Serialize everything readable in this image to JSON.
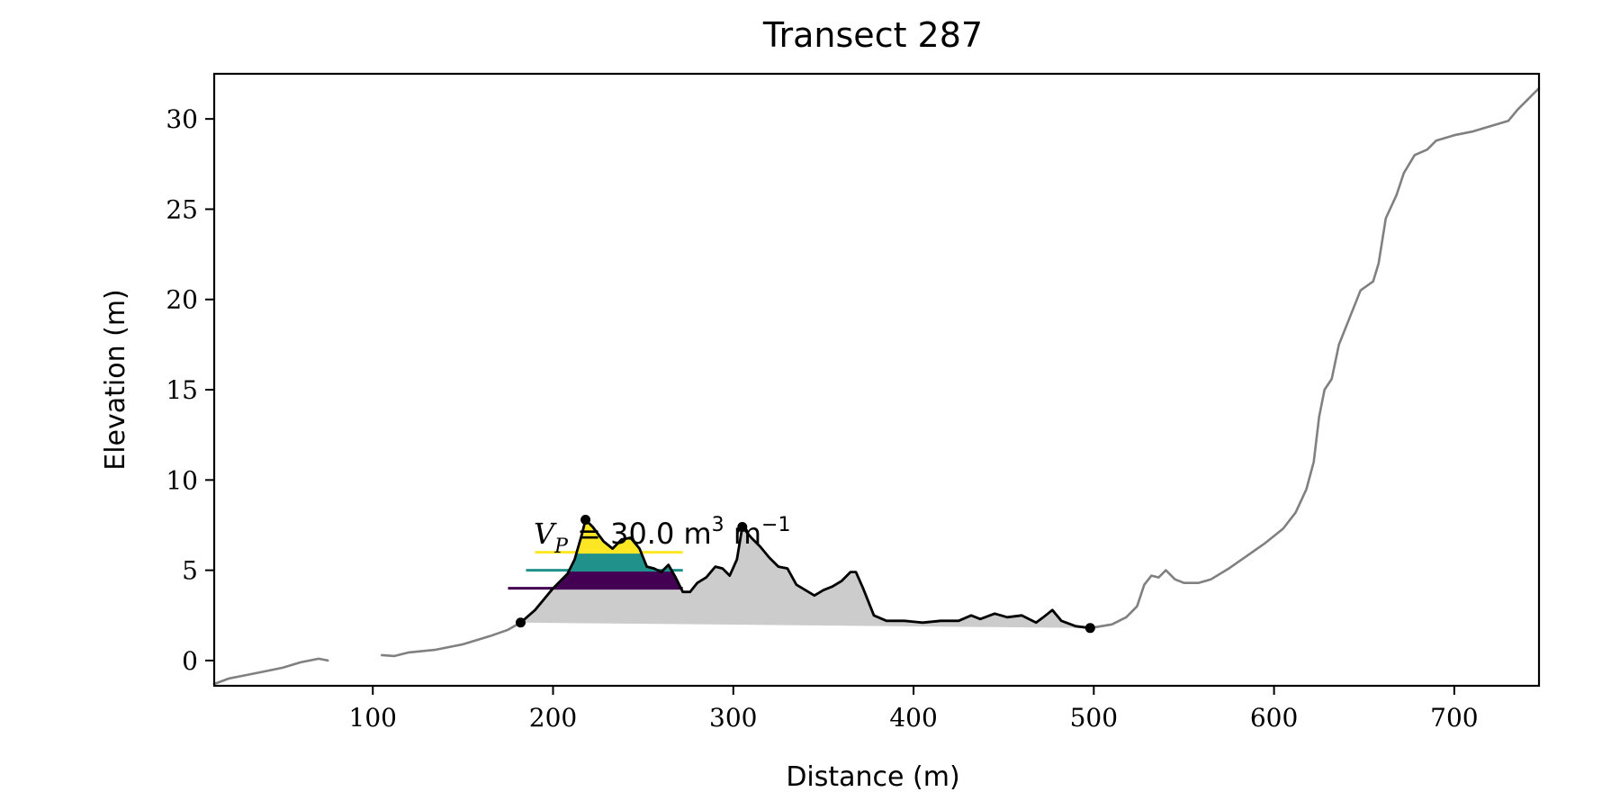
{
  "chart_data": {
    "type": "line",
    "title": "Transect 287",
    "xlabel": "Distance (m)",
    "ylabel": "Elevation (m)",
    "xlim": [
      12,
      747
    ],
    "ylim": [
      -1.4,
      32.5
    ],
    "xticks": [
      100,
      200,
      300,
      400,
      500,
      600,
      700
    ],
    "yticks": [
      0,
      5,
      10,
      15,
      20,
      25,
      30
    ],
    "grid": false,
    "legend": "none",
    "annotation": {
      "symbol": "V",
      "subscript": "P",
      "text": " = 30.0 m",
      "superscript_unit": "3",
      "unit_tail": " m",
      "superscript_tail": "−1",
      "x": 190,
      "y": 6.0
    },
    "series": [
      {
        "role": "profile-left",
        "color": "#808080",
        "points": [
          [
            12,
            -1.3
          ],
          [
            20,
            -1.0
          ],
          [
            30,
            -0.8
          ],
          [
            40,
            -0.6
          ],
          [
            50,
            -0.4
          ],
          [
            60,
            -0.1
          ],
          [
            70,
            0.1
          ],
          [
            75,
            0.0
          ]
        ]
      },
      {
        "role": "profile-middle",
        "color": "#808080",
        "points": [
          [
            105,
            0.3
          ],
          [
            112,
            0.25
          ],
          [
            120,
            0.45
          ],
          [
            135,
            0.6
          ],
          [
            150,
            0.9
          ],
          [
            165,
            1.35
          ],
          [
            175,
            1.7
          ],
          [
            182,
            2.1
          ]
        ]
      },
      {
        "role": "dune-profile",
        "color": "#000000",
        "points": [
          [
            182,
            2.1
          ],
          [
            190,
            2.8
          ],
          [
            200,
            4.0
          ],
          [
            208,
            4.8
          ],
          [
            212,
            5.6
          ],
          [
            216,
            7.0
          ],
          [
            218,
            7.8
          ],
          [
            222,
            7.4
          ],
          [
            228,
            6.6
          ],
          [
            233,
            6.2
          ],
          [
            238,
            6.7
          ],
          [
            243,
            6.8
          ],
          [
            248,
            6.2
          ],
          [
            252,
            5.2
          ],
          [
            256,
            5.1
          ],
          [
            260,
            4.9
          ],
          [
            264,
            5.3
          ],
          [
            268,
            4.6
          ],
          [
            272,
            3.8
          ],
          [
            276,
            3.8
          ],
          [
            280,
            4.3
          ],
          [
            285,
            4.6
          ],
          [
            290,
            5.2
          ],
          [
            294,
            5.1
          ],
          [
            298,
            4.7
          ],
          [
            302,
            5.6
          ],
          [
            305,
            7.4
          ],
          [
            310,
            6.8
          ],
          [
            315,
            6.3
          ],
          [
            320,
            5.7
          ],
          [
            325,
            5.2
          ],
          [
            330,
            5.1
          ],
          [
            335,
            4.2
          ],
          [
            340,
            3.9
          ],
          [
            345,
            3.6
          ],
          [
            350,
            3.9
          ],
          [
            355,
            4.1
          ],
          [
            360,
            4.4
          ],
          [
            365,
            4.9
          ],
          [
            368,
            4.9
          ],
          [
            372,
            4.0
          ],
          [
            378,
            2.5
          ],
          [
            385,
            2.2
          ],
          [
            395,
            2.2
          ],
          [
            405,
            2.1
          ],
          [
            415,
            2.2
          ],
          [
            425,
            2.2
          ],
          [
            432,
            2.5
          ],
          [
            437,
            2.3
          ],
          [
            445,
            2.6
          ],
          [
            452,
            2.4
          ],
          [
            460,
            2.5
          ],
          [
            468,
            2.1
          ],
          [
            472,
            2.4
          ],
          [
            477,
            2.8
          ],
          [
            482,
            2.2
          ],
          [
            490,
            1.9
          ],
          [
            498,
            1.8
          ]
        ]
      },
      {
        "role": "profile-right",
        "color": "#808080",
        "points": [
          [
            498,
            1.8
          ],
          [
            510,
            2.0
          ],
          [
            518,
            2.4
          ],
          [
            524,
            3.0
          ],
          [
            528,
            4.2
          ],
          [
            532,
            4.7
          ],
          [
            536,
            4.6
          ],
          [
            540,
            5.0
          ],
          [
            545,
            4.5
          ],
          [
            550,
            4.3
          ],
          [
            558,
            4.3
          ],
          [
            565,
            4.5
          ],
          [
            575,
            5.1
          ],
          [
            585,
            5.8
          ],
          [
            595,
            6.5
          ],
          [
            605,
            7.3
          ],
          [
            612,
            8.2
          ],
          [
            618,
            9.5
          ],
          [
            622,
            11.0
          ],
          [
            625,
            13.5
          ],
          [
            628,
            15.0
          ],
          [
            632,
            15.6
          ],
          [
            636,
            17.5
          ],
          [
            642,
            19.0
          ],
          [
            648,
            20.5
          ],
          [
            655,
            21.0
          ],
          [
            658,
            22.0
          ],
          [
            662,
            24.5
          ],
          [
            668,
            25.8
          ],
          [
            672,
            27.0
          ],
          [
            678,
            28.0
          ],
          [
            685,
            28.3
          ],
          [
            690,
            28.8
          ],
          [
            700,
            29.1
          ],
          [
            710,
            29.3
          ],
          [
            720,
            29.6
          ],
          [
            730,
            29.9
          ],
          [
            735,
            30.5
          ],
          [
            740,
            31.0
          ],
          [
            747,
            31.7
          ]
        ]
      }
    ],
    "fill_region": {
      "color": "#cccccc",
      "baseline_start": [
        182,
        2.1
      ],
      "baseline_end": [
        498,
        1.8
      ]
    },
    "markers": [
      {
        "x": 182,
        "y": 2.1
      },
      {
        "x": 218,
        "y": 7.8
      },
      {
        "x": 305,
        "y": 7.4
      },
      {
        "x": 498,
        "y": 1.8
      }
    ],
    "bands": [
      {
        "level": 4.0,
        "color": "#440154",
        "x_start": 175
      },
      {
        "level": 5.0,
        "color": "#21918c",
        "x_start": 185
      },
      {
        "level": 6.0,
        "color": "#fde725",
        "x_start": 190
      }
    ]
  }
}
